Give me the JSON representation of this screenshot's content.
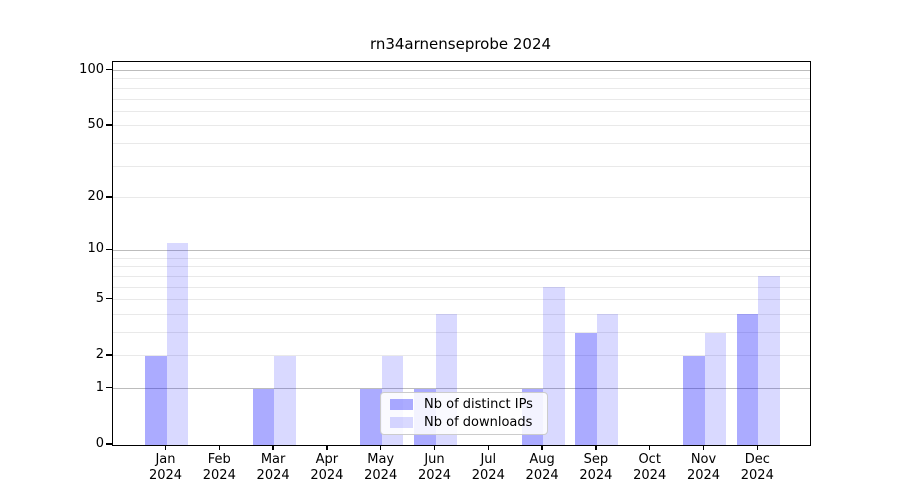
{
  "title": "rn34arnenseprobe 2024",
  "legend": {
    "position": "lower center",
    "items": [
      {
        "label": "Nb of distinct IPs",
        "color": "rgba(0,0,255,0.33)"
      },
      {
        "label": "Nb of downloads",
        "color": "rgba(0,0,255,0.15)"
      }
    ]
  },
  "chart_data": {
    "type": "bar",
    "title": "rn34arnenseprobe 2024",
    "xlabel": "",
    "ylabel": "",
    "categories": [
      "Jan",
      "Feb",
      "Mar",
      "Apr",
      "May",
      "Jun",
      "Jul",
      "Aug",
      "Sep",
      "Oct",
      "Nov",
      "Dec"
    ],
    "category_year": "2024",
    "series": [
      {
        "name": "Nb of distinct IPs",
        "color": "rgba(0,0,255,0.33)",
        "values": [
          2,
          0,
          1,
          0,
          1,
          1,
          0,
          1,
          3,
          0,
          2,
          4
        ]
      },
      {
        "name": "Nb of downloads",
        "color": "rgba(0,0,255,0.15)",
        "values": [
          11,
          0,
          2,
          0,
          2,
          4,
          0,
          6,
          4,
          0,
          3,
          7
        ]
      }
    ],
    "y_axis": {
      "scale": "log1p",
      "tick_values": [
        0,
        1,
        2,
        5,
        10,
        20,
        50,
        100
      ],
      "tick_labels": [
        "0",
        "1",
        "2",
        "5",
        "10",
        "20",
        "50",
        "100"
      ],
      "strong_gridline_values": [
        1,
        10,
        100
      ],
      "minor_gridline_values": [
        3,
        4,
        6,
        7,
        8,
        9,
        30,
        40,
        60,
        70,
        80,
        90
      ],
      "ylim": [
        0,
        113
      ]
    },
    "grid": true,
    "legend_position": "lower center"
  }
}
